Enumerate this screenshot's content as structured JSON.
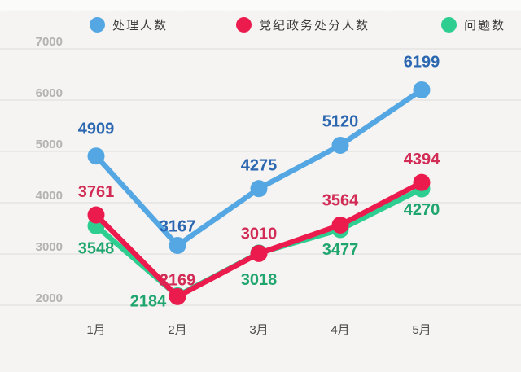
{
  "chart_data": {
    "type": "line",
    "title": "",
    "x": [
      "1月",
      "2月",
      "3月",
      "4月",
      "5月"
    ],
    "series": [
      {
        "name": "处理人数",
        "color": "#54a7e3",
        "label_color": "#2b66b0",
        "values": [
          4909,
          3167,
          4275,
          5120,
          6199
        ]
      },
      {
        "name": "党纪政务处分人数",
        "color": "#ec1b4e",
        "label_color": "#d12b56",
        "values": [
          3761,
          2169,
          3010,
          3564,
          4394
        ]
      },
      {
        "name": "问题数",
        "color": "#2ecd90",
        "label_color": "#1fa56d",
        "values": [
          3548,
          2184,
          3018,
          3477,
          4270
        ]
      }
    ],
    "y_ticks": [
      7000,
      6000,
      5000,
      4000,
      3000,
      2000
    ],
    "ylim": [
      2000,
      7000
    ],
    "grid": true,
    "legend_position": "top",
    "point_labels": true
  },
  "style": {
    "background": "#f5f4f2",
    "grid_color": "#dedcda",
    "y_tick_color": "#b5b2b0",
    "x_tick_color": "#4d4d4d",
    "legend_text_color": "#3b3b3b"
  }
}
